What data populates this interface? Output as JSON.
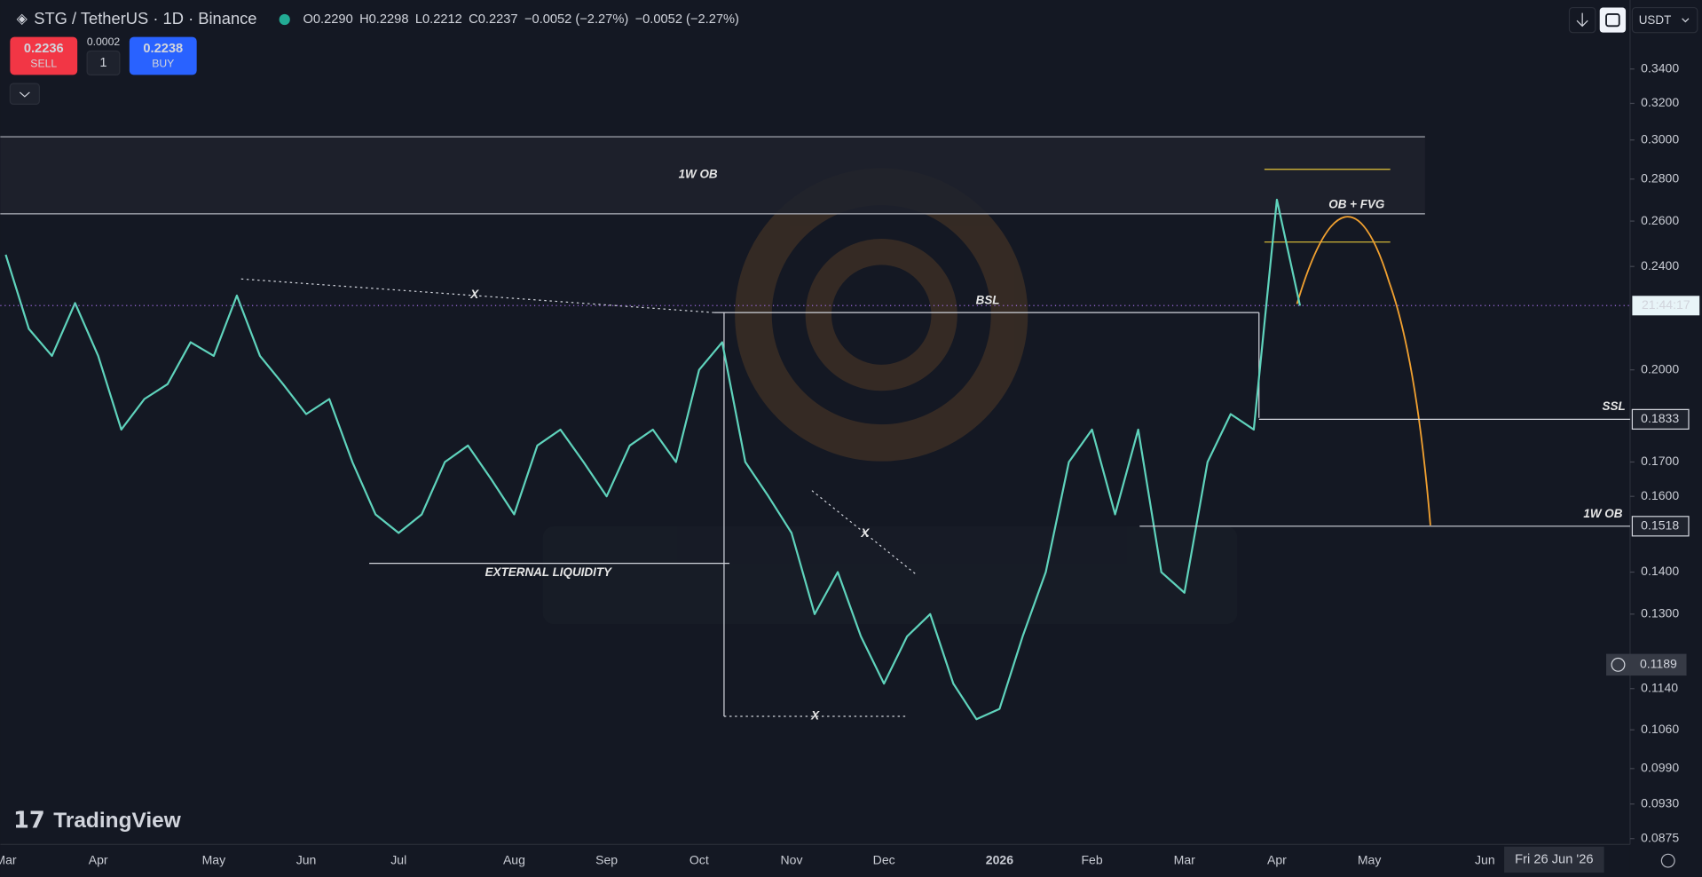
{
  "header": {
    "symbol": "STG / TetherUS · 1D · Binance",
    "ohlc": [
      {
        "key": "O",
        "value": "0.2290"
      },
      {
        "key": "H",
        "value": "0.2298"
      },
      {
        "key": "L",
        "value": "0.2212"
      },
      {
        "key": "C",
        "value": "0.2237"
      }
    ],
    "changes": [
      "−0.0052 (−2.27%)",
      "−0.0052 (−2.27%)"
    ]
  },
  "trade": {
    "sell_price": "0.2236",
    "sell_label": "SELL",
    "spread": "0.0002",
    "quantity": "1",
    "buy_price": "0.2238",
    "buy_label": "BUY"
  },
  "ui": {
    "currency": "USDT",
    "logo": "TradingView",
    "cursor_date": "Fri 26 Jun '26",
    "countdown": "21:44:17"
  },
  "chart_data": {
    "type": "line",
    "log_scale": true,
    "color": "#5fd3bc",
    "categories": [
      "Mar",
      null,
      null,
      null,
      "Apr",
      null,
      null,
      null,
      null,
      "May",
      null,
      null,
      null,
      "Jun",
      null,
      null,
      null,
      "Jul",
      null,
      null,
      null,
      null,
      "Aug",
      null,
      null,
      null,
      "Sep",
      null,
      null,
      null,
      "Oct",
      null,
      null,
      null,
      "Nov",
      null,
      null,
      null,
      "Dec",
      null,
      null,
      null,
      null,
      "2026",
      null,
      null,
      null,
      "Feb",
      null,
      null,
      null,
      "Mar",
      null,
      null,
      null,
      "Apr",
      null,
      null,
      null,
      "May",
      null,
      null,
      null,
      null,
      "Jun",
      null,
      null,
      null,
      null,
      null
    ],
    "values": [
      0.245,
      0.215,
      0.205,
      0.225,
      0.205,
      0.18,
      0.19,
      0.195,
      0.21,
      0.205,
      0.228,
      0.205,
      0.195,
      0.185,
      0.19,
      0.17,
      0.155,
      0.15,
      0.155,
      0.17,
      0.175,
      0.165,
      0.155,
      0.175,
      0.18,
      0.17,
      0.16,
      0.175,
      0.18,
      0.17,
      0.2,
      0.21,
      0.17,
      0.16,
      0.15,
      0.13,
      0.14,
      0.125,
      0.115,
      0.125,
      0.13,
      0.115,
      0.108,
      0.11,
      0.125,
      0.14,
      0.17,
      0.18,
      0.155,
      0.18,
      0.14,
      0.135,
      0.17,
      0.185,
      0.18,
      0.27,
      0.224,
      null,
      null,
      null,
      null,
      null,
      null,
      null,
      null,
      null,
      null,
      null,
      null,
      null
    ],
    "ylim": [
      0.0866,
      0.384
    ],
    "yticks": [
      {
        "value": 0.34,
        "label": "0.3400"
      },
      {
        "value": 0.32,
        "label": "0.3200"
      },
      {
        "value": 0.3,
        "label": "0.3000"
      },
      {
        "value": 0.28,
        "label": "0.2800"
      },
      {
        "value": 0.26,
        "label": "0.2600"
      },
      {
        "value": 0.24,
        "label": "0.2400"
      },
      {
        "value": 0.2,
        "label": "0.2000"
      },
      {
        "value": 0.17,
        "label": "0.1700"
      },
      {
        "value": 0.16,
        "label": "0.1600"
      },
      {
        "value": 0.14,
        "label": "0.1400"
      },
      {
        "value": 0.13,
        "label": "0.1300"
      },
      {
        "value": 0.114,
        "label": "0.1140"
      },
      {
        "value": 0.106,
        "label": "0.1060"
      },
      {
        "value": 0.099,
        "label": "0.0990"
      },
      {
        "value": 0.093,
        "label": "0.0930"
      },
      {
        "value": 0.0875,
        "label": "0.0875"
      }
    ],
    "levels": [
      {
        "value": 0.1833,
        "label": "0.1833"
      },
      {
        "value": 0.1518,
        "label": "0.1518"
      }
    ],
    "crosshair": {
      "value": 0.1189,
      "label": "0.1189"
    },
    "annotations": [
      "1W OB",
      "OB + FVG",
      "BSL",
      "SSL",
      "1W OB",
      "EXTERNAL LIQUIDITY",
      "X",
      "X",
      "X"
    ]
  }
}
